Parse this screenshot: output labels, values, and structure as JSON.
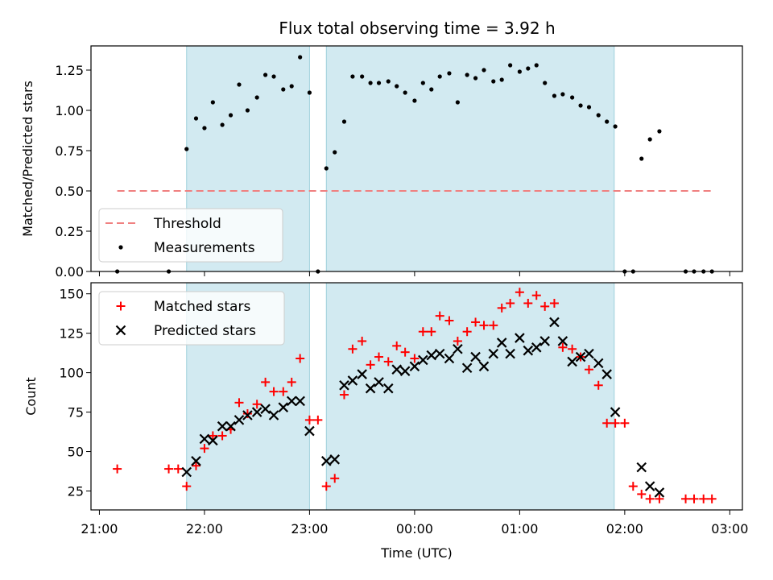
{
  "figure": {
    "title": "Flux total observing time = 3.92 h",
    "xlabel": "Time (UTC)"
  },
  "colors": {
    "shade": "#add8e6",
    "threshold": "#f08080",
    "measurement": "#000000",
    "matched": "#ff0000",
    "predicted": "#000000"
  },
  "chart_data": [
    {
      "type": "scatter",
      "panel": "top",
      "ylabel": "Matched/Predicted stars",
      "xlim": [
        20.92,
        27.12
      ],
      "ylim": [
        0,
        1.4
      ],
      "yticks": [
        0.0,
        0.25,
        0.5,
        0.75,
        1.0,
        1.25
      ],
      "ytick_labels": [
        "0.00",
        "0.25",
        "0.50",
        "0.75",
        "1.00",
        "1.25"
      ],
      "xticks": [
        21,
        22,
        23,
        24,
        25,
        26,
        27
      ],
      "shaded_intervals": [
        [
          21.83,
          23.0
        ],
        [
          23.16,
          25.9
        ]
      ],
      "legend": {
        "position": "lower-left",
        "entries": [
          "Threshold",
          "Measurements"
        ]
      },
      "threshold": {
        "name": "Threshold",
        "y": 0.5,
        "x_range": [
          21.17,
          26.83
        ]
      },
      "measurements": {
        "name": "Measurements",
        "x": [
          21.17,
          21.66,
          21.83,
          21.92,
          22.0,
          22.08,
          22.17,
          22.25,
          22.33,
          22.41,
          22.5,
          22.58,
          22.66,
          22.75,
          22.83,
          22.91,
          23.0,
          23.08,
          23.16,
          23.24,
          23.33,
          23.41,
          23.5,
          23.58,
          23.66,
          23.75,
          23.83,
          23.91,
          24.0,
          24.08,
          24.16,
          24.24,
          24.33,
          24.41,
          24.5,
          24.58,
          24.66,
          24.75,
          24.83,
          24.91,
          25.0,
          25.08,
          25.16,
          25.24,
          25.33,
          25.41,
          25.5,
          25.58,
          25.66,
          25.75,
          25.83,
          25.91,
          26.0,
          26.08,
          26.16,
          26.24,
          26.33,
          26.58,
          26.66,
          26.75,
          26.83
        ],
        "y": [
          0.0,
          0.0,
          0.76,
          0.95,
          0.89,
          1.05,
          0.91,
          0.97,
          1.16,
          1.0,
          1.08,
          1.22,
          1.21,
          1.13,
          1.15,
          1.33,
          1.11,
          0.0,
          0.64,
          0.74,
          0.93,
          1.21,
          1.21,
          1.17,
          1.17,
          1.18,
          1.15,
          1.11,
          1.06,
          1.17,
          1.13,
          1.21,
          1.23,
          1.05,
          1.22,
          1.2,
          1.25,
          1.18,
          1.19,
          1.28,
          1.24,
          1.26,
          1.28,
          1.17,
          1.09,
          1.1,
          1.08,
          1.03,
          1.02,
          0.97,
          0.93,
          0.9,
          0.0,
          0.0,
          0.7,
          0.82,
          0.87,
          0.0,
          0.0,
          0.0,
          0.0
        ]
      }
    },
    {
      "type": "scatter",
      "panel": "bottom",
      "ylabel": "Count",
      "xlabel": "Time (UTC)",
      "xlim": [
        20.92,
        27.12
      ],
      "ylim": [
        13,
        157
      ],
      "yticks": [
        25,
        50,
        75,
        100,
        125,
        150
      ],
      "ytick_labels": [
        "25",
        "50",
        "75",
        "100",
        "125",
        "150"
      ],
      "xticks": [
        21,
        22,
        23,
        24,
        25,
        26,
        27
      ],
      "xtick_labels": [
        "21:00",
        "22:00",
        "23:00",
        "00:00",
        "01:00",
        "02:00",
        "03:00"
      ],
      "shaded_intervals": [
        [
          21.83,
          23.0
        ],
        [
          23.16,
          25.9
        ]
      ],
      "legend": {
        "position": "top-left",
        "entries": [
          "Matched stars",
          "Predicted stars"
        ]
      },
      "series": [
        {
          "name": "Matched stars",
          "marker": "plus",
          "x": [
            21.17,
            21.66,
            21.75,
            21.83,
            21.92,
            22.0,
            22.08,
            22.17,
            22.25,
            22.33,
            22.41,
            22.5,
            22.58,
            22.66,
            22.75,
            22.83,
            22.91,
            23.0,
            23.08,
            23.16,
            23.24,
            23.33,
            23.41,
            23.5,
            23.58,
            23.66,
            23.75,
            23.83,
            23.91,
            24.0,
            24.08,
            24.16,
            24.24,
            24.33,
            24.41,
            24.5,
            24.58,
            24.66,
            24.75,
            24.83,
            24.91,
            25.0,
            25.08,
            25.16,
            25.24,
            25.33,
            25.41,
            25.5,
            25.58,
            25.66,
            25.75,
            25.83,
            25.91,
            26.0,
            26.08,
            26.16,
            26.24,
            26.33,
            26.58,
            26.66,
            26.75,
            26.83
          ],
          "y": [
            39,
            39,
            39,
            28,
            41,
            52,
            60,
            60,
            64,
            81,
            74,
            80,
            94,
            88,
            88,
            94,
            109,
            70,
            70,
            28,
            33,
            86,
            115,
            120,
            105,
            110,
            107,
            117,
            113,
            109,
            126,
            126,
            136,
            133,
            120,
            126,
            132,
            130,
            130,
            141,
            144,
            151,
            144,
            149,
            142,
            144,
            116,
            115,
            110,
            102,
            92,
            68,
            68,
            68,
            28,
            23,
            20,
            20,
            20,
            20,
            20,
            20
          ]
        },
        {
          "name": "Predicted stars",
          "marker": "x",
          "x": [
            21.83,
            21.92,
            22.0,
            22.08,
            22.17,
            22.25,
            22.33,
            22.41,
            22.5,
            22.58,
            22.66,
            22.75,
            22.83,
            22.91,
            23.0,
            23.16,
            23.24,
            23.33,
            23.41,
            23.5,
            23.58,
            23.66,
            23.75,
            23.83,
            23.91,
            24.0,
            24.08,
            24.16,
            24.24,
            24.33,
            24.41,
            24.5,
            24.58,
            24.66,
            24.75,
            24.83,
            24.91,
            25.0,
            25.08,
            25.16,
            25.24,
            25.33,
            25.41,
            25.5,
            25.58,
            25.66,
            25.75,
            25.83,
            25.91,
            26.16,
            26.24,
            26.33
          ],
          "y": [
            37,
            44,
            58,
            57,
            66,
            66,
            70,
            73,
            75,
            77,
            73,
            78,
            82,
            82,
            63,
            44,
            45,
            92,
            95,
            99,
            90,
            94,
            90,
            102,
            101,
            104,
            108,
            111,
            112,
            109,
            115,
            103,
            110,
            104,
            112,
            119,
            112,
            122,
            114,
            116,
            120,
            132,
            120,
            107,
            110,
            112,
            106,
            99,
            75,
            40,
            28,
            24
          ]
        }
      ]
    }
  ]
}
